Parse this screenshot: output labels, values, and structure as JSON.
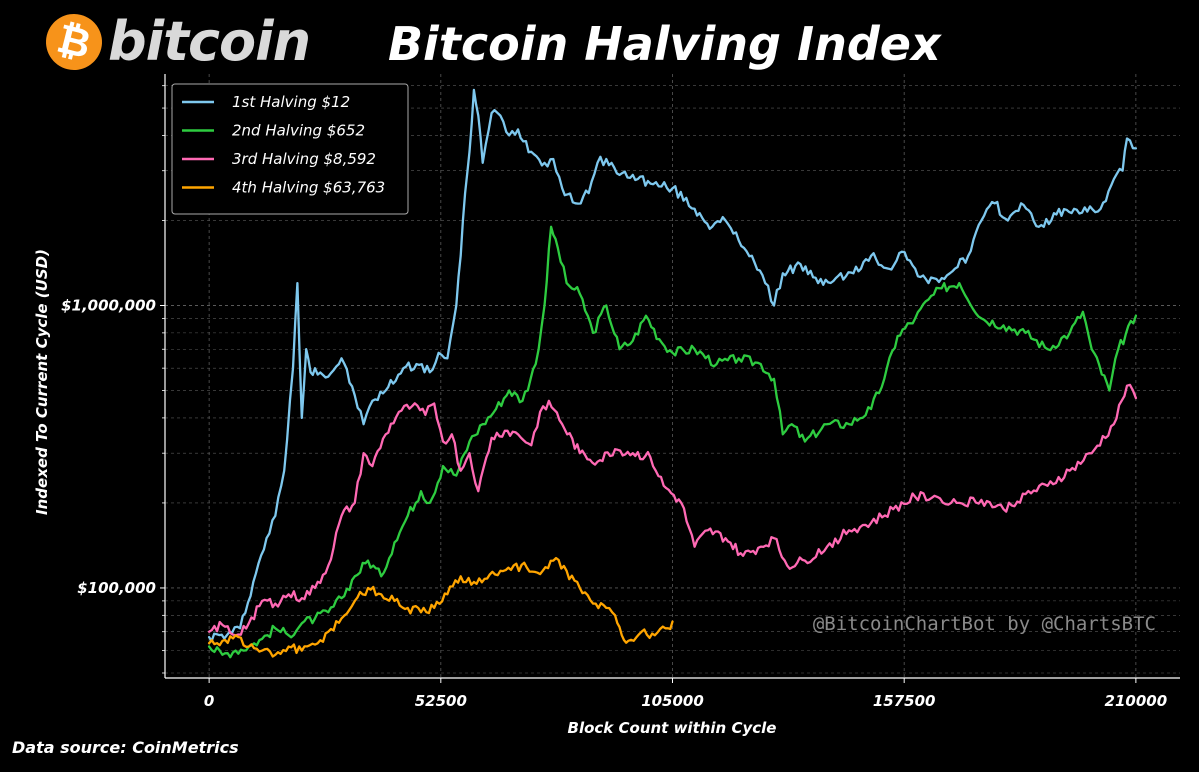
{
  "header": {
    "logo_text": "bitcoin",
    "logo_symbol": "₿",
    "title": "Bitcoin Halving Index"
  },
  "footer": {
    "source": "Data source: CoinMetrics"
  },
  "watermark": "@BitcoinChartBot by @ChartsBTC",
  "colors": {
    "background": "#000000",
    "grid": "#5a5a5a",
    "axis": "#ffffff",
    "logo_orange": "#f7931a"
  },
  "chart_data": {
    "type": "line",
    "title": "Bitcoin Halving Index",
    "xlabel": "Block Count within Cycle",
    "ylabel": "Indexed To Current Cycle (USD)",
    "xlim": [
      -10000,
      220000
    ],
    "ylim": [
      48000,
      6600000
    ],
    "y_scale": "log",
    "x_ticks": [
      0,
      52500,
      105000,
      157500,
      210000
    ],
    "x_tick_labels": [
      "0",
      "52500",
      "105000",
      "157500",
      "210000"
    ],
    "y_ticks": [
      100000,
      1000000
    ],
    "y_tick_labels": [
      "$100,000",
      "$1,000,000"
    ],
    "grid": true,
    "legend_position": "top-left",
    "series": [
      {
        "name": "1st Halving $12",
        "color": "#7ec8ee",
        "x": [
          0,
          4000,
          7000,
          10000,
          13000,
          15000,
          17000,
          19000,
          20000,
          21000,
          22000,
          23000,
          24000,
          27000,
          30000,
          33000,
          35000,
          37000,
          40000,
          44000,
          47000,
          50000,
          52000,
          54000,
          56000,
          57000,
          58000,
          59000,
          60000,
          61000,
          62000,
          64000,
          66000,
          68000,
          70000,
          73000,
          76000,
          78000,
          80000,
          83000,
          86000,
          88000,
          90000,
          93000,
          96000,
          100000,
          105000,
          110000,
          114000,
          117000,
          120000,
          123000,
          126000,
          128000,
          130000,
          134000,
          138000,
          142000,
          146000,
          150000,
          154000,
          157000,
          160000,
          163000,
          166000,
          169000,
          172000,
          175000,
          178000,
          181000,
          184000,
          188000,
          192000,
          196000,
          199000,
          202000,
          205000,
          207000,
          208000,
          210000
        ],
        "values": [
          67000,
          68000,
          72000,
          105000,
          150000,
          180000,
          260000,
          600000,
          1200000,
          400000,
          700000,
          580000,
          600000,
          560000,
          650000,
          480000,
          380000,
          460000,
          500000,
          600000,
          620000,
          580000,
          680000,
          650000,
          1000000,
          1500000,
          2500000,
          3500000,
          5800000,
          4700000,
          3200000,
          4800000,
          4700000,
          4000000,
          4200000,
          3500000,
          3200000,
          3300000,
          2600000,
          2300000,
          2500000,
          3200000,
          3300000,
          2900000,
          2900000,
          2700000,
          2600000,
          2200000,
          1900000,
          2000000,
          1700000,
          1500000,
          1200000,
          1000000,
          1300000,
          1400000,
          1200000,
          1250000,
          1300000,
          1500000,
          1350000,
          1550000,
          1350000,
          1200000,
          1250000,
          1350000,
          1500000,
          2000000,
          2300000,
          2000000,
          2300000,
          1900000,
          2100000,
          2200000,
          2150000,
          2200000,
          2800000,
          3000000,
          3900000,
          3600000
        ]
      },
      {
        "name": "2nd Halving $652",
        "color": "#2ecc40",
        "x": [
          0,
          3000,
          6000,
          9000,
          12000,
          15000,
          18000,
          21000,
          24000,
          27000,
          30000,
          33000,
          36000,
          39000,
          42000,
          45000,
          48000,
          50000,
          53000,
          56000,
          59000,
          62000,
          65000,
          68000,
          71000,
          74000,
          76000,
          77500,
          79000,
          81000,
          84000,
          87000,
          90000,
          93000,
          96000,
          99000,
          102000,
          105000,
          110000,
          115000,
          120000,
          125000,
          128000,
          130000,
          132000,
          135000,
          140000,
          145000,
          150000,
          153000,
          156000,
          160000,
          163000,
          166000,
          170000,
          175000,
          180000,
          185000,
          190000,
          195000,
          198000,
          200000,
          204000,
          206000,
          210000
        ],
        "values": [
          62000,
          58000,
          60000,
          62000,
          66000,
          72000,
          68000,
          75000,
          78000,
          82000,
          92000,
          110000,
          125000,
          110000,
          145000,
          180000,
          220000,
          200000,
          270000,
          250000,
          330000,
          380000,
          430000,
          500000,
          460000,
          620000,
          1000000,
          1900000,
          1600000,
          1200000,
          1100000,
          800000,
          1000000,
          700000,
          750000,
          920000,
          760000,
          680000,
          700000,
          620000,
          650000,
          620000,
          550000,
          350000,
          380000,
          330000,
          380000,
          380000,
          430000,
          550000,
          780000,
          900000,
          1050000,
          1150000,
          1200000,
          900000,
          850000,
          800000,
          700000,
          800000,
          950000,
          700000,
          500000,
          700000,
          920000
        ]
      },
      {
        "name": "3rd Halving $8,592",
        "color": "#ff69b4",
        "x": [
          0,
          3000,
          6000,
          9000,
          12000,
          15000,
          18000,
          21000,
          24000,
          27000,
          30000,
          33000,
          35000,
          37000,
          40000,
          43000,
          46000,
          49000,
          51000,
          53000,
          55000,
          57000,
          59000,
          61000,
          64000,
          67000,
          70000,
          73000,
          75000,
          77000,
          80000,
          84000,
          88000,
          92000,
          96000,
          100000,
          103000,
          107000,
          110000,
          113000,
          117000,
          121000,
          125000,
          128000,
          131000,
          135000,
          140000,
          145000,
          150000,
          155000,
          160000,
          165000,
          170000,
          175000,
          180000,
          185000,
          190000,
          195000,
          200000,
          205000,
          208000,
          210000
        ],
        "values": [
          70000,
          74000,
          68000,
          75000,
          90000,
          88000,
          95000,
          92000,
          100000,
          120000,
          180000,
          200000,
          300000,
          270000,
          350000,
          420000,
          440000,
          410000,
          450000,
          330000,
          350000,
          260000,
          300000,
          220000,
          340000,
          360000,
          350000,
          320000,
          420000,
          460000,
          380000,
          300000,
          280000,
          310000,
          300000,
          290000,
          230000,
          200000,
          140000,
          160000,
          150000,
          130000,
          140000,
          150000,
          120000,
          125000,
          140000,
          160000,
          170000,
          190000,
          210000,
          210000,
          200000,
          205000,
          190000,
          215000,
          230000,
          260000,
          300000,
          380000,
          520000,
          470000
        ]
      },
      {
        "name": "4th Halving $63,763",
        "color": "#ffa500",
        "x": [
          0,
          3000,
          6000,
          9000,
          12000,
          15000,
          18000,
          21000,
          24000,
          27000,
          30000,
          33000,
          36000,
          39000,
          42000,
          45000,
          48000,
          51000,
          54000,
          57000,
          60000,
          63000,
          66000,
          69000,
          72000,
          75000,
          78000,
          81000,
          84000,
          87000,
          90000,
          92000,
          93500,
          95000,
          98000,
          101000,
          104000,
          105000
        ],
        "values": [
          63763,
          65000,
          68000,
          62000,
          60000,
          58000,
          62000,
          60000,
          63000,
          70000,
          78000,
          90000,
          100000,
          95000,
          90000,
          85000,
          82000,
          85000,
          95000,
          110000,
          105000,
          108000,
          115000,
          120000,
          118000,
          112000,
          125000,
          115000,
          100000,
          88000,
          85000,
          80000,
          68000,
          65000,
          70000,
          68000,
          72000,
          76000
        ]
      }
    ]
  }
}
